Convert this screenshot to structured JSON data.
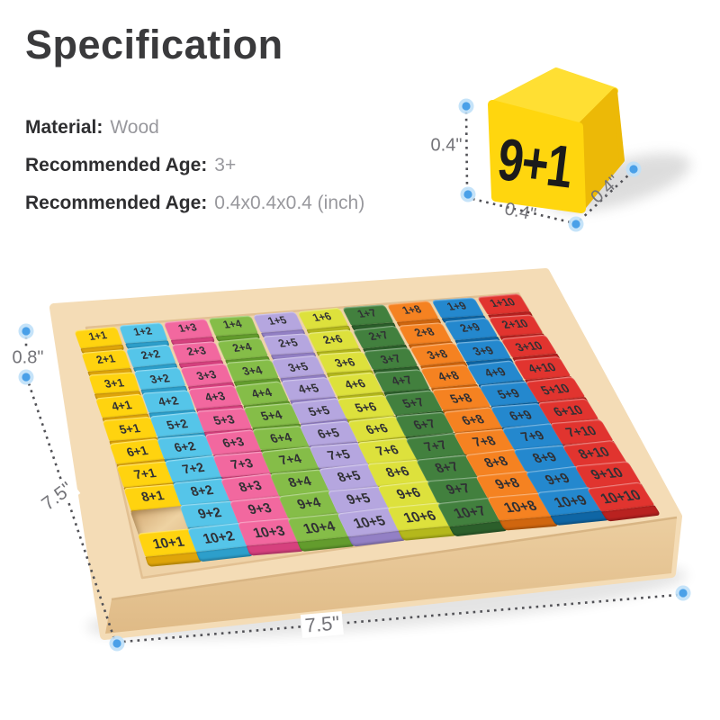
{
  "title": "Specification",
  "specs": [
    {
      "label": "Material:",
      "value": "Wood"
    },
    {
      "label": "Recommended Age:",
      "value": "3+"
    },
    {
      "label": "Recommended Age:",
      "value": "0.4x0.4x0.4 (inch)"
    }
  ],
  "cube": {
    "label": "9+1",
    "color": "#FFD60E",
    "dims": {
      "height": "0.4\"",
      "width": "0.4\"",
      "depth": "0.4\""
    }
  },
  "board": {
    "dims": {
      "height": "0.8\"",
      "side": "7.5\"",
      "front": "7.5\""
    },
    "missing_tile": "9+1",
    "column_colors": [
      {
        "name": "yellow",
        "top": "#FFD30F",
        "front": "#DFA50A"
      },
      {
        "name": "cyan",
        "top": "#55C5E9",
        "front": "#2D9FCB"
      },
      {
        "name": "pink",
        "top": "#F2689F",
        "front": "#D6417E"
      },
      {
        "name": "green",
        "top": "#85BD48",
        "front": "#639C2D"
      },
      {
        "name": "lavender",
        "top": "#B5A6DF",
        "front": "#9380C5"
      },
      {
        "name": "lime",
        "top": "#DDE13C",
        "front": "#B4B81C"
      },
      {
        "name": "dark-green",
        "top": "#42803E",
        "front": "#2C5F2B"
      },
      {
        "name": "orange",
        "top": "#F58221",
        "front": "#D0660F"
      },
      {
        "name": "blue",
        "top": "#2488CE",
        "front": "#0F66A5"
      },
      {
        "name": "red",
        "top": "#E1342F",
        "front": "#B92220"
      }
    ],
    "rows": [
      [
        "1+1",
        "1+2",
        "1+3",
        "1+4",
        "1+5",
        "1+6",
        "1+7",
        "1+8",
        "1+9",
        "1+10"
      ],
      [
        "2+1",
        "2+2",
        "2+3",
        "2+4",
        "2+5",
        "2+6",
        "2+7",
        "2+8",
        "2+9",
        "2+10"
      ],
      [
        "3+1",
        "3+2",
        "3+3",
        "3+4",
        "3+5",
        "3+6",
        "3+7",
        "3+8",
        "3+9",
        "3+10"
      ],
      [
        "4+1",
        "4+2",
        "4+3",
        "4+4",
        "4+5",
        "4+6",
        "4+7",
        "4+8",
        "4+9",
        "4+10"
      ],
      [
        "5+1",
        "5+2",
        "5+3",
        "5+4",
        "5+5",
        "5+6",
        "5+7",
        "5+8",
        "5+9",
        "5+10"
      ],
      [
        "6+1",
        "6+2",
        "6+3",
        "6+4",
        "6+5",
        "6+6",
        "6+7",
        "6+8",
        "6+9",
        "6+10"
      ],
      [
        "7+1",
        "7+2",
        "7+3",
        "7+4",
        "7+5",
        "7+6",
        "7+7",
        "7+8",
        "7+9",
        "7+10"
      ],
      [
        "8+1",
        "8+2",
        "8+3",
        "8+4",
        "8+5",
        "8+6",
        "8+7",
        "8+8",
        "8+9",
        "8+10"
      ],
      [
        null,
        "9+2",
        "9+3",
        "9+4",
        "9+5",
        "9+6",
        "9+7",
        "9+8",
        "9+9",
        "9+10"
      ],
      [
        "10+1",
        "10+2",
        "10+3",
        "10+4",
        "10+5",
        "10+6",
        "10+7",
        "10+8",
        "10+9",
        "10+10"
      ]
    ]
  }
}
